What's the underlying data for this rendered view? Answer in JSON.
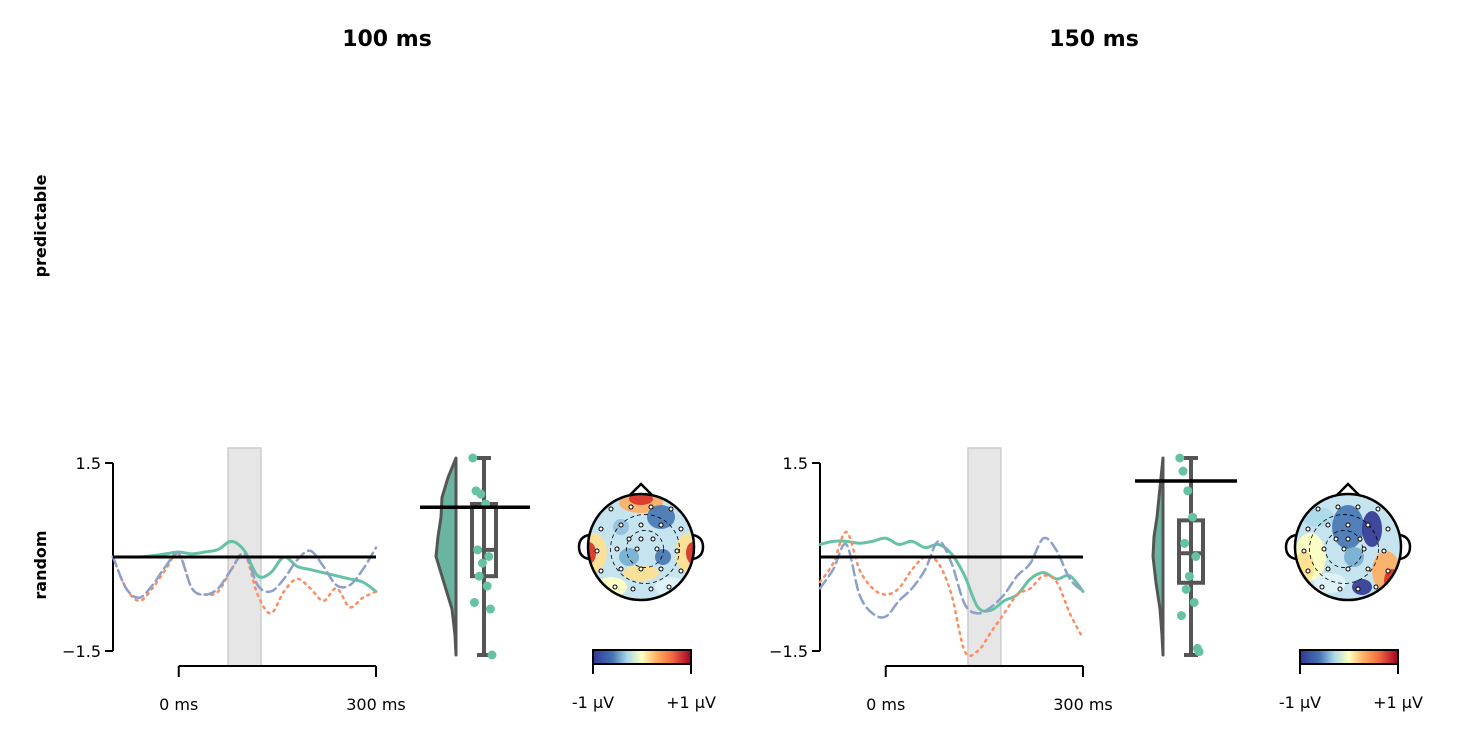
{
  "row_labels": [
    "predictable",
    "random"
  ],
  "panel_titles": [
    "100 ms",
    "150 ms"
  ],
  "colors": {
    "green": "#66c2a5",
    "orange": "#fc8d62",
    "blue": "#8da0cb",
    "box": "#555555",
    "shade": "#d9d9d9"
  },
  "chart_data": [
    {
      "type": "line",
      "title": "100 ms",
      "row": "random",
      "ylim": [
        -1.5,
        1.5
      ],
      "yticks": [
        "1.5",
        "−1.5"
      ],
      "xlim_ms": [
        -100,
        300
      ],
      "xticks": [
        "0 ms",
        "300 ms"
      ],
      "highlight_window_ms": [
        75,
        125
      ],
      "mean_marker": 0.0,
      "series": [
        {
          "style": "solid",
          "color": "#66c2a5",
          "x": [
            -100,
            -80,
            -60,
            -40,
            -20,
            0,
            20,
            40,
            60,
            80,
            100,
            120,
            140,
            160,
            180,
            200,
            220,
            240,
            260,
            280,
            300
          ],
          "y": [
            0.0,
            0.0,
            0.0,
            0.02,
            0.05,
            0.08,
            0.05,
            0.08,
            0.12,
            0.25,
            0.1,
            -0.3,
            -0.25,
            0.0,
            -0.15,
            -0.2,
            -0.25,
            -0.3,
            -0.35,
            -0.4,
            -0.55
          ]
        },
        {
          "style": "dotted",
          "color": "#fc8d62",
          "x": [
            -100,
            -80,
            -60,
            -40,
            -20,
            0,
            20,
            40,
            60,
            80,
            100,
            120,
            140,
            160,
            180,
            200,
            220,
            240,
            260,
            280,
            300
          ],
          "y": [
            0.0,
            -0.5,
            -0.7,
            -0.5,
            -0.2,
            0.05,
            -0.5,
            -0.6,
            -0.55,
            -0.2,
            0.05,
            -0.6,
            -0.9,
            -0.55,
            -0.35,
            -0.5,
            -0.7,
            -0.5,
            -0.8,
            -0.65,
            -0.55
          ]
        },
        {
          "style": "dashed",
          "color": "#8da0cb",
          "x": [
            -100,
            -80,
            -60,
            -40,
            -20,
            0,
            20,
            40,
            60,
            80,
            100,
            120,
            140,
            160,
            180,
            200,
            220,
            240,
            260,
            280,
            300
          ],
          "y": [
            0.0,
            -0.5,
            -0.65,
            -0.45,
            -0.15,
            0.05,
            -0.5,
            -0.6,
            -0.5,
            -0.2,
            0.05,
            -0.45,
            -0.55,
            -0.35,
            -0.05,
            0.1,
            -0.15,
            -0.45,
            -0.45,
            -0.2,
            0.15
          ]
        }
      ],
      "distribution": {
        "violin_ylim": [
          -1.5,
          1.5
        ],
        "box": {
          "whisker_low": -1.5,
          "q1": -0.3,
          "median": 0.1,
          "q3": 0.8,
          "whisker_high": 1.5
        },
        "mean_line": 0.75,
        "points": [
          1.5,
          1.0,
          0.95,
          0.8,
          0.1,
          0.0,
          -0.1,
          -0.3,
          -0.45,
          -0.7,
          -0.8,
          -1.5
        ]
      },
      "topomap": {
        "colorbar_ticks": [
          "-1 μV",
          "+1 μV"
        ]
      }
    },
    {
      "type": "line",
      "title": "150 ms",
      "row": "random",
      "ylim": [
        -1.5,
        1.5
      ],
      "yticks": [
        "1.5",
        "−1.5"
      ],
      "xlim_ms": [
        -100,
        300
      ],
      "xticks": [
        "0 ms",
        "300 ms"
      ],
      "highlight_window_ms": [
        125,
        175
      ],
      "mean_marker": 0.0,
      "series": [
        {
          "style": "solid",
          "color": "#66c2a5",
          "x": [
            -100,
            -80,
            -60,
            -40,
            -20,
            0,
            20,
            40,
            60,
            80,
            100,
            120,
            140,
            160,
            180,
            200,
            220,
            240,
            260,
            280,
            300
          ],
          "y": [
            0.2,
            0.25,
            0.25,
            0.22,
            0.25,
            0.3,
            0.2,
            0.25,
            0.15,
            0.2,
            0.05,
            -0.3,
            -0.8,
            -0.85,
            -0.7,
            -0.6,
            -0.35,
            -0.25,
            -0.35,
            -0.3,
            -0.55
          ]
        },
        {
          "style": "dotted",
          "color": "#fc8d62",
          "x": [
            -100,
            -80,
            -60,
            -40,
            -20,
            0,
            20,
            40,
            60,
            80,
            100,
            120,
            140,
            160,
            180,
            200,
            220,
            240,
            260,
            280,
            300
          ],
          "y": [
            -0.4,
            -0.1,
            0.4,
            -0.2,
            -0.5,
            -0.6,
            -0.5,
            -0.2,
            0.0,
            -0.1,
            -0.6,
            -1.5,
            -1.5,
            -1.2,
            -0.9,
            -0.6,
            -0.5,
            -0.3,
            -0.4,
            -0.9,
            -1.3
          ]
        },
        {
          "style": "dashed",
          "color": "#8da0cb",
          "x": [
            -100,
            -80,
            -60,
            -40,
            -20,
            0,
            20,
            40,
            60,
            80,
            100,
            120,
            140,
            160,
            180,
            200,
            220,
            240,
            260,
            280,
            300
          ],
          "y": [
            -0.5,
            -0.2,
            0.2,
            -0.6,
            -0.9,
            -0.95,
            -0.7,
            -0.5,
            -0.2,
            0.25,
            -0.1,
            -0.75,
            -0.9,
            -0.8,
            -0.6,
            -0.3,
            -0.1,
            0.3,
            0.1,
            -0.35,
            -0.55
          ]
        }
      ],
      "distribution": {
        "violin_ylim": [
          -1.5,
          1.5
        ],
        "box": {
          "whisker_low": -1.5,
          "q1": -0.4,
          "median": 0.05,
          "q3": 0.55,
          "whisker_high": 1.5
        },
        "mean_line": 1.15,
        "points": [
          1.5,
          1.3,
          1.0,
          0.6,
          0.2,
          0.0,
          -0.3,
          -0.5,
          -0.7,
          -0.9,
          -1.4,
          -1.45
        ]
      },
      "topomap": {
        "colorbar_ticks": [
          "-1 μV",
          "+1 μV"
        ]
      }
    }
  ]
}
